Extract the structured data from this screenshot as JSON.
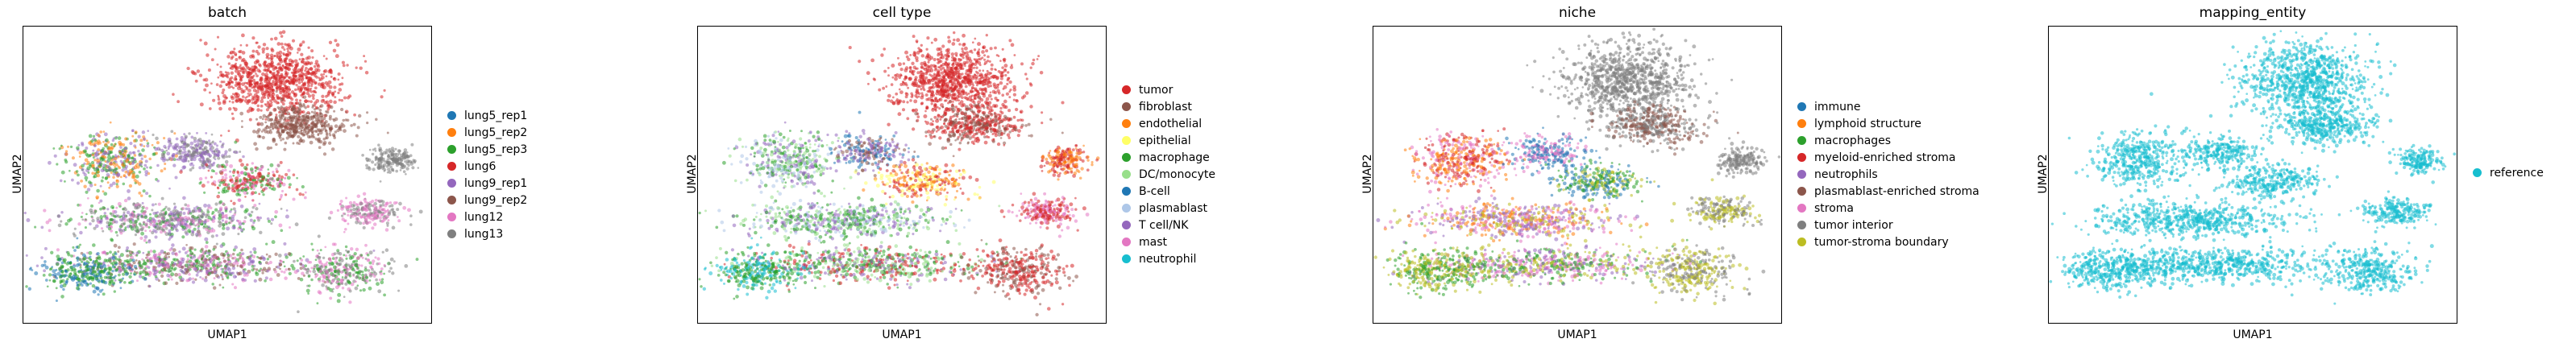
{
  "chart_data": [
    {
      "type": "scatter",
      "title": "batch",
      "xlabel": "UMAP1",
      "ylabel": "UMAP2",
      "grid": false,
      "ticks": false,
      "legend_position": "right",
      "series": [
        {
          "name": "lung5_rep1",
          "color": "#1f77b4"
        },
        {
          "name": "lung5_rep2",
          "color": "#ff7f0e"
        },
        {
          "name": "lung5_rep3",
          "color": "#2ca02c"
        },
        {
          "name": "lung6",
          "color": "#d62728"
        },
        {
          "name": "lung9_rep1",
          "color": "#9467bd"
        },
        {
          "name": "lung9_rep2",
          "color": "#8c564b"
        },
        {
          "name": "lung12",
          "color": "#e377c2"
        },
        {
          "name": "lung13",
          "color": "#7f7f7f"
        }
      ]
    },
    {
      "type": "scatter",
      "title": "cell type",
      "xlabel": "UMAP1",
      "ylabel": "UMAP2",
      "grid": false,
      "ticks": false,
      "legend_position": "right",
      "series": [
        {
          "name": "tumor",
          "color": "#d62728"
        },
        {
          "name": "fibroblast",
          "color": "#8c564b"
        },
        {
          "name": "endothelial",
          "color": "#ff7f0e"
        },
        {
          "name": "epithelial",
          "color": "#ffff66"
        },
        {
          "name": "macrophage",
          "color": "#2ca02c"
        },
        {
          "name": "DC/monocyte",
          "color": "#98df8a"
        },
        {
          "name": "B-cell",
          "color": "#1f77b4"
        },
        {
          "name": "plasmablast",
          "color": "#aec7e8"
        },
        {
          "name": "T cell/NK",
          "color": "#9467bd"
        },
        {
          "name": "mast",
          "color": "#e377c2"
        },
        {
          "name": "neutrophil",
          "color": "#17becf"
        }
      ]
    },
    {
      "type": "scatter",
      "title": "niche",
      "xlabel": "UMAP1",
      "ylabel": "UMAP2",
      "grid": false,
      "ticks": false,
      "legend_position": "right",
      "series": [
        {
          "name": "immune",
          "color": "#1f77b4"
        },
        {
          "name": "lymphoid structure",
          "color": "#ff7f0e"
        },
        {
          "name": "macrophages",
          "color": "#2ca02c"
        },
        {
          "name": "myeloid-enriched stroma",
          "color": "#d62728"
        },
        {
          "name": "neutrophils",
          "color": "#9467bd"
        },
        {
          "name": "plasmablast-enriched stroma",
          "color": "#8c564b"
        },
        {
          "name": "stroma",
          "color": "#e377c2"
        },
        {
          "name": "tumor interior",
          "color": "#7f7f7f"
        },
        {
          "name": "tumor-stroma boundary",
          "color": "#bcbd22"
        }
      ]
    },
    {
      "type": "scatter",
      "title": "mapping_entity",
      "xlabel": "UMAP1",
      "ylabel": "UMAP2",
      "grid": false,
      "ticks": false,
      "legend_position": "right",
      "series": [
        {
          "name": "reference",
          "color": "#17becf"
        }
      ]
    }
  ]
}
